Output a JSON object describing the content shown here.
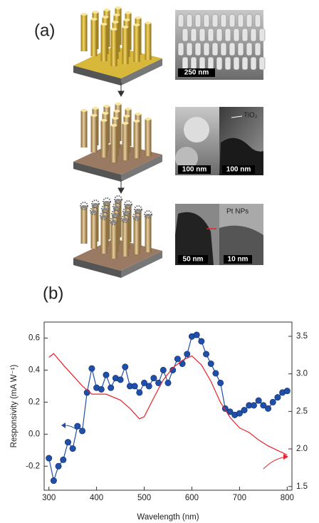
{
  "panels": {
    "a": {
      "label": "(a)",
      "scale_bars": [
        "250 nm",
        "100 nm",
        "100 nm",
        "50 nm",
        "10 nm"
      ],
      "annotations": [
        "TiO₂",
        "Pt NPs"
      ]
    },
    "b": {
      "label": "(b)"
    }
  },
  "chart_data": {
    "type": "line",
    "xlabel": "Wavelength (nm)",
    "ylabel": "Responsivity (mA W⁻¹)",
    "xlim": [
      290,
      810
    ],
    "xticks": [
      300,
      400,
      500,
      600,
      700,
      800
    ],
    "ylim": [
      -0.35,
      0.7
    ],
    "yticks": [
      -0.2,
      {
        "value": 0,
        "label": "0.0"
      },
      0.2,
      0.4,
      0.6
    ],
    "y2lim": [
      1.45,
      3.69
    ],
    "y2ticks": [
      1.5,
      {
        "value": 2,
        "label": "2.0"
      },
      2.5,
      {
        "value": 3,
        "label": "3.0"
      },
      3.5
    ],
    "series": [
      {
        "color": "#1f4fa8",
        "markers": true,
        "x": [
          300,
          310,
          320,
          330,
          340,
          350,
          360,
          370,
          380,
          390,
          400,
          410,
          420,
          430,
          440,
          450,
          460,
          470,
          480,
          490,
          500,
          510,
          520,
          530,
          540,
          550,
          560,
          570,
          580,
          590,
          600,
          610,
          620,
          630,
          640,
          650,
          660,
          670,
          680,
          690,
          700,
          710,
          720,
          730,
          740,
          750,
          760,
          770,
          780,
          790,
          800
        ],
        "values": [
          -0.15,
          -0.29,
          -0.2,
          -0.16,
          -0.05,
          -0.09,
          0.05,
          0.02,
          0.26,
          0.41,
          0.29,
          0.28,
          0.37,
          0.29,
          0.35,
          0.34,
          0.42,
          0.3,
          0.3,
          0.26,
          0.32,
          0.3,
          0.35,
          0.32,
          0.4,
          0.32,
          0.4,
          0.47,
          0.44,
          0.5,
          0.61,
          0.62,
          0.58,
          0.5,
          0.44,
          0.38,
          0.32,
          0.16,
          0.14,
          0.12,
          0.13,
          0.15,
          0.18,
          0.18,
          0.21,
          0.18,
          0.16,
          0.2,
          0.23,
          0.26,
          0.27
        ]
      },
      {
        "color": "#e8202a",
        "markers": false,
        "axis": "y2",
        "x": [
          300,
          310,
          330,
          350,
          370,
          390,
          420,
          450,
          470,
          490,
          500,
          520,
          540,
          560,
          580,
          600,
          620,
          640,
          660,
          680,
          700,
          720,
          740,
          760,
          780,
          800
        ],
        "values": [
          3.22,
          3.27,
          3.12,
          2.98,
          2.84,
          2.73,
          2.73,
          2.65,
          2.54,
          2.4,
          2.43,
          2.68,
          2.92,
          3.08,
          3.18,
          3.24,
          3.12,
          2.9,
          2.62,
          2.42,
          2.28,
          2.22,
          2.12,
          2.04,
          1.98,
          1.92
        ]
      }
    ]
  }
}
